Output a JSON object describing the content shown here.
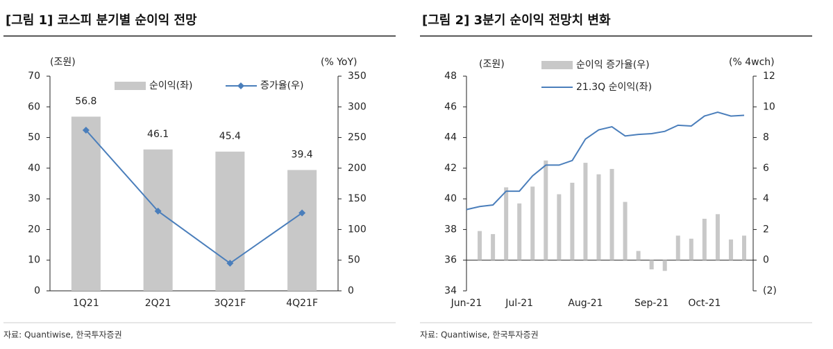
{
  "chart_data": [
    {
      "type": "combo",
      "title": "[그림 1] 코스피 분기별 순이익 전망",
      "source": "자료: Quantiwise, 한국투자증권",
      "y_label": "(조원)",
      "y2_label": "(% YoY)",
      "categories": [
        "1Q21",
        "2Q21",
        "3Q21F",
        "4Q21F"
      ],
      "series": [
        {
          "name": "순이익(좌)",
          "type": "bar",
          "color": "#c8c8c8",
          "values": [
            56.8,
            46.1,
            45.4,
            39.4
          ],
          "show_values": true
        },
        {
          "name": "증가율(우)",
          "type": "line",
          "axis": "y2",
          "color": "#4a7ebb",
          "marker": "diamond",
          "values": [
            262,
            130,
            45,
            127
          ]
        }
      ],
      "ylim": [
        0,
        70
      ],
      "yticks": [
        0,
        10,
        20,
        30,
        40,
        50,
        60,
        70
      ],
      "y2lim": [
        0,
        350
      ],
      "y2ticks": [
        0,
        50,
        100,
        150,
        200,
        250,
        300,
        350
      ]
    },
    {
      "type": "combo",
      "title": "[그림 2] 3분기 순이익 전망치 변화",
      "source": "자료: Quantiwise, 한국투자증권",
      "y_label": "(조원)",
      "y2_label": "(% 4wch)",
      "categories": [
        "Jun-21",
        null,
        null,
        null,
        "Jul-21",
        null,
        null,
        null,
        null,
        "Aug-21",
        null,
        null,
        null,
        null,
        "Sep-21",
        null,
        null,
        null,
        "Oct-21",
        null,
        null,
        null
      ],
      "series": [
        {
          "name": "순이익 증가율(우)",
          "type": "bar",
          "axis": "y2",
          "color": "#c8c8c8",
          "values": [
            null,
            1.9,
            1.7,
            4.75,
            3.7,
            4.8,
            6.5,
            4.3,
            5.05,
            6.35,
            5.6,
            5.95,
            3.8,
            0.6,
            -0.6,
            -0.7,
            1.6,
            1.4,
            2.7,
            3.0,
            1.35,
            1.6
          ]
        },
        {
          "name": "21.3Q 순이익(좌)",
          "type": "line",
          "color": "#4a7ebb",
          "values": [
            39.3,
            39.5,
            39.6,
            40.5,
            40.5,
            41.5,
            42.2,
            42.2,
            42.5,
            43.9,
            44.5,
            44.7,
            44.1,
            44.2,
            44.25,
            44.4,
            44.8,
            44.75,
            45.4,
            45.65,
            45.4,
            45.45
          ]
        }
      ],
      "ylim": [
        34,
        48
      ],
      "yticks": [
        34,
        36,
        38,
        40,
        42,
        44,
        46,
        48
      ],
      "y2lim": [
        -2,
        12
      ],
      "y2ticks": [
        {
          "value": -2,
          "label": "(2)"
        },
        0,
        2,
        4,
        6,
        8,
        10,
        12
      ]
    }
  ]
}
